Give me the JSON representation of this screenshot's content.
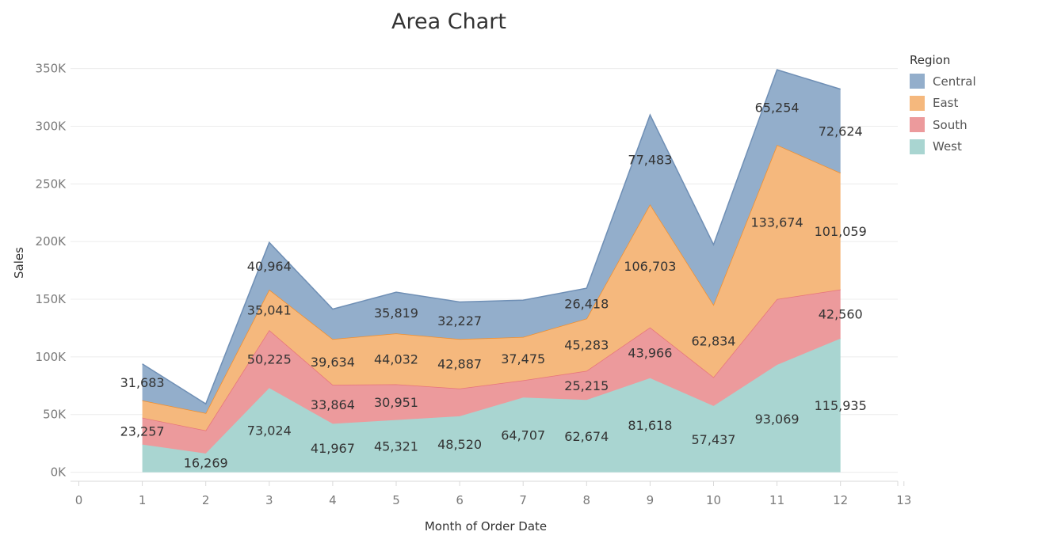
{
  "chart_data": {
    "type": "area",
    "stacked": true,
    "title": "Area Chart",
    "xlabel": "Month of Order Date",
    "ylabel": "Sales",
    "xlim": [
      0,
      13
    ],
    "ylim": [
      0,
      350000
    ],
    "x_ticks": [
      0,
      1,
      2,
      3,
      4,
      5,
      6,
      7,
      8,
      9,
      10,
      11,
      12,
      13
    ],
    "y_ticks": [
      0,
      50000,
      100000,
      150000,
      200000,
      250000,
      300000,
      350000
    ],
    "y_tick_labels": [
      "0K",
      "50K",
      "100K",
      "150K",
      "200K",
      "250K",
      "300K",
      "350K"
    ],
    "x": [
      1,
      2,
      3,
      4,
      5,
      6,
      7,
      8,
      9,
      10,
      11,
      12
    ],
    "legend_title": "Region",
    "legend_position": "top-right",
    "grid": true,
    "series": [
      {
        "name": "West",
        "color": "#a9d5d1",
        "stroke": "#a9d5d1",
        "values": [
          24000,
          16269,
          73024,
          41967,
          45321,
          48520,
          64707,
          62674,
          81618,
          57437,
          93069,
          115935
        ],
        "labels": [
          "",
          "16,269",
          "73,024",
          "41,967",
          "45,321",
          "48,520",
          "64,707",
          "62,674",
          "81,618",
          "57,437",
          "93,069",
          "115,935"
        ]
      },
      {
        "name": "South",
        "color": "#ec9a9c",
        "stroke": "#e7747a",
        "values": [
          23257,
          20000,
          50225,
          33864,
          30951,
          24000,
          15000,
          25215,
          43966,
          25000,
          57000,
          42560
        ],
        "labels": [
          "23,257",
          "",
          "50,225",
          "33,864",
          "30,951",
          "",
          "",
          "25,215",
          "43,966",
          "",
          "",
          "42,560"
        ]
      },
      {
        "name": "East",
        "color": "#f5b87d",
        "stroke": "#f28e2b",
        "values": [
          15000,
          15000,
          35041,
          39634,
          44032,
          42887,
          37475,
          45283,
          106703,
          62834,
          133674,
          101059
        ],
        "labels": [
          "",
          "",
          "35,041",
          "39,634",
          "44,032",
          "42,887",
          "37,475",
          "45,283",
          "106,703",
          "62,834",
          "133,674",
          "101,059"
        ]
      },
      {
        "name": "Central",
        "color": "#93aecb",
        "stroke": "#6f8fb5",
        "values": [
          31683,
          8000,
          40964,
          26000,
          35819,
          32227,
          32000,
          26418,
          77483,
          52000,
          65254,
          72624
        ],
        "labels": [
          "31,683",
          "",
          "40,964",
          "",
          "35,819",
          "32,227",
          "",
          "26,418",
          "77,483",
          "",
          "65,254",
          "72,624"
        ]
      }
    ]
  }
}
